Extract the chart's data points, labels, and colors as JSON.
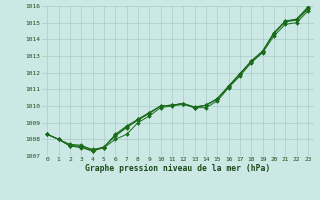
{
  "x": [
    0,
    1,
    2,
    3,
    4,
    5,
    6,
    7,
    8,
    9,
    10,
    11,
    12,
    13,
    14,
    15,
    16,
    17,
    18,
    19,
    20,
    21,
    22,
    23
  ],
  "line1": [
    1008.3,
    1008.0,
    1007.6,
    1007.6,
    1007.4,
    1007.5,
    1008.0,
    1008.3,
    1009.0,
    1009.4,
    1009.9,
    1010.0,
    1010.1,
    1009.9,
    1009.9,
    1010.3,
    1011.1,
    1011.8,
    1012.6,
    1013.2,
    1014.2,
    1014.9,
    1015.0,
    1015.7
  ],
  "line2": [
    1008.3,
    1008.0,
    1007.7,
    1007.65,
    1007.35,
    1007.55,
    1008.2,
    1008.7,
    1009.15,
    1009.55,
    1010.0,
    1010.05,
    1010.15,
    1009.9,
    1010.05,
    1010.4,
    1011.15,
    1011.9,
    1012.65,
    1013.25,
    1014.35,
    1015.05,
    1015.15,
    1015.8
  ],
  "line3": [
    1008.3,
    1008.0,
    1007.65,
    1007.55,
    1007.3,
    1007.52,
    1008.25,
    1008.75,
    1009.2,
    1009.6,
    1010.0,
    1010.05,
    1010.15,
    1009.9,
    1010.05,
    1010.42,
    1011.18,
    1011.93,
    1012.68,
    1013.28,
    1014.38,
    1015.08,
    1015.18,
    1015.88
  ],
  "line4": [
    1008.3,
    1008.0,
    1007.6,
    1007.5,
    1007.3,
    1007.5,
    1008.3,
    1008.8,
    1009.2,
    1009.6,
    1010.0,
    1010.05,
    1010.15,
    1009.95,
    1010.05,
    1010.45,
    1011.2,
    1011.95,
    1012.7,
    1013.3,
    1014.4,
    1015.1,
    1015.22,
    1015.95
  ],
  "bg_color": "#cce8e4",
  "grid_color": "#aacccc",
  "line_color": "#1a6b1a",
  "text_color": "#1a4a1a",
  "xlabel": "Graphe pression niveau de la mer (hPa)",
  "ylim": [
    1007,
    1016
  ],
  "yticks": [
    1007,
    1008,
    1009,
    1010,
    1011,
    1012,
    1013,
    1014,
    1015,
    1016
  ],
  "xticks": [
    0,
    1,
    2,
    3,
    4,
    5,
    6,
    7,
    8,
    9,
    10,
    11,
    12,
    13,
    14,
    15,
    16,
    17,
    18,
    19,
    20,
    21,
    22,
    23
  ],
  "xtick_labels": [
    "0",
    "1",
    "2",
    "3",
    "4",
    "5",
    "6",
    "7",
    "8",
    "9",
    "10",
    "11",
    "12",
    "13",
    "14",
    "15",
    "16",
    "17",
    "18",
    "19",
    "20",
    "21",
    "22",
    "23"
  ]
}
